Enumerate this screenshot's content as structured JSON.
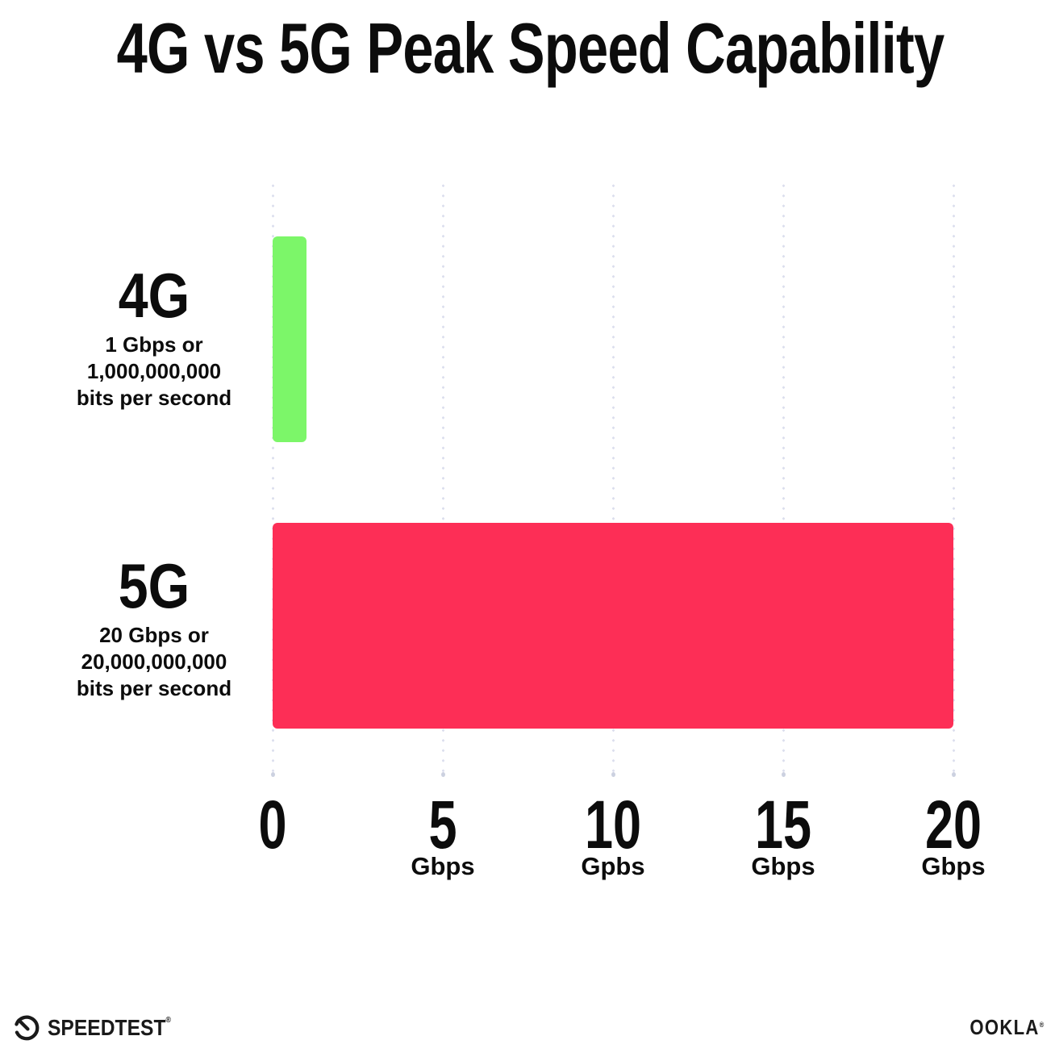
{
  "title": "4G vs 5G Peak Speed Capability",
  "chart_data": {
    "type": "bar",
    "orientation": "horizontal",
    "title": "4G vs 5G Peak Speed Capability",
    "categories": [
      "4G",
      "5G"
    ],
    "values": [
      1,
      20
    ],
    "xlim": [
      0,
      20
    ],
    "x_unit": "Gbps",
    "grid": "vertical-dotted",
    "legend": "none",
    "rows": [
      {
        "name": "4G",
        "value": 1,
        "color": "#7cf669",
        "desc_lines": [
          "1 Gbps or",
          "1,000,000,000",
          "bits per second"
        ]
      },
      {
        "name": "5G",
        "value": 20,
        "color": "#fd2e56",
        "desc_lines": [
          "20 Gbps or",
          "20,000,000,000",
          "bits per second"
        ]
      }
    ],
    "x_ticks": [
      {
        "value": "0",
        "unit": ""
      },
      {
        "value": "5",
        "unit": "Gbps"
      },
      {
        "value": "10",
        "unit": "Gpbs"
      },
      {
        "value": "15",
        "unit": "Gbps"
      },
      {
        "value": "20",
        "unit": "Gbps"
      }
    ]
  },
  "footer": {
    "speedtest_label": "SPEEDTEST",
    "speedtest_reg_mark": "®",
    "ookla_label": "OOKLA",
    "ookla_reg_mark": "®"
  },
  "colors": {
    "bar_4g": "#7cf669",
    "bar_5g": "#fd2e56",
    "grid_dot": "#dcdfee",
    "text": "#0c0c0c",
    "background": "#ffffff"
  }
}
